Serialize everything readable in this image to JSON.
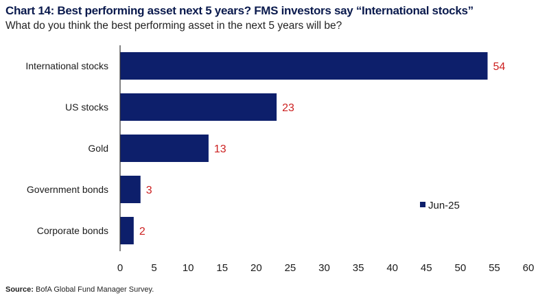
{
  "title": "Chart 14: Best performing asset next 5 years? FMS investors say “International stocks”",
  "subtitle": "What do you think the best performing asset in the next 5 years will be?",
  "source_label": "Source:",
  "source_text": " BofA Global Fund Manager Survey.",
  "colors": {
    "bar": "#0d1f6b",
    "value_label": "#cc1f1f",
    "axis": "#333333"
  },
  "chart_data": {
    "type": "bar",
    "orientation": "horizontal",
    "categories": [
      "International stocks",
      "US stocks",
      "Gold",
      "Government bonds",
      "Corporate bonds"
    ],
    "series": [
      {
        "name": "Jun-25",
        "values": [
          54,
          23,
          13,
          3,
          2
        ]
      }
    ],
    "xlim": [
      0,
      60
    ],
    "xticks": [
      0,
      5,
      10,
      15,
      20,
      25,
      30,
      35,
      40,
      45,
      50,
      55,
      60
    ],
    "grid": false,
    "legend": "right"
  }
}
